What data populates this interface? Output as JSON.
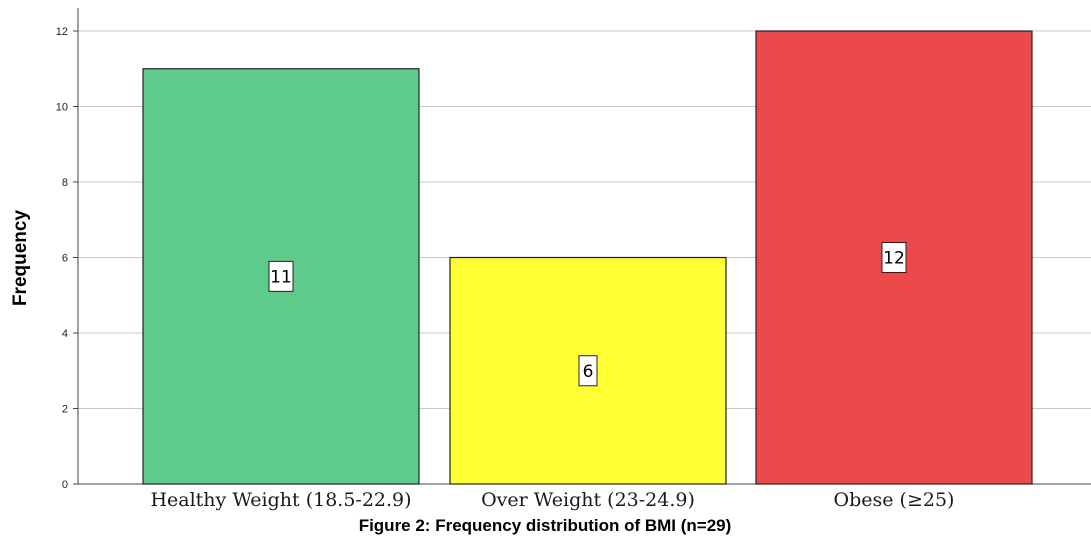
{
  "chart_data": {
    "type": "bar",
    "categories": [
      "Healthy Weight (18.5-22.9)",
      "Over Weight (23-24.9)",
      "Obese (≥25)"
    ],
    "values": [
      11,
      6,
      12
    ],
    "data_labels": [
      "11",
      "6",
      "12"
    ],
    "colors": [
      "#5ecb8c",
      "#ffff33",
      "#ec4a4a"
    ],
    "bar_outline_color": "#222222",
    "gridline_color": "#c8c8c8",
    "ylabel": "Frequency",
    "xlabel": "",
    "ylim": [
      0,
      12.6
    ],
    "yticks": [
      0,
      2,
      4,
      6,
      8,
      10,
      12
    ],
    "grid": "horizontal",
    "legend": "none"
  },
  "caption": "Figure 2: Frequency distribution of BMI (n=29)"
}
